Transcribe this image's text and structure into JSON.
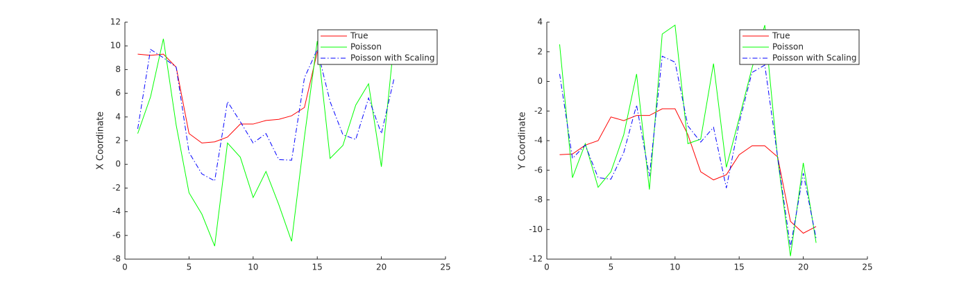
{
  "chart_data": [
    {
      "type": "line",
      "ylabel": "X Coordinate",
      "x": [
        1,
        2,
        3,
        4,
        5,
        6,
        7,
        8,
        9,
        10,
        11,
        12,
        13,
        14,
        15,
        16,
        17,
        18,
        19,
        20,
        21
      ],
      "series": [
        {
          "name": "True",
          "color": "#ff0000",
          "style": "solid",
          "values": [
            9.3,
            9.2,
            9.3,
            8.2,
            2.6,
            1.8,
            1.9,
            2.3,
            3.4,
            3.4,
            3.7,
            3.8,
            4.1,
            4.8,
            9.5,
            9.8,
            10.0,
            10.2,
            10.4,
            10.6,
            10.8
          ]
        },
        {
          "name": "Poisson",
          "color": "#00ff00",
          "style": "solid",
          "values": [
            2.6,
            5.7,
            10.6,
            3.3,
            -2.4,
            -4.2,
            -6.9,
            1.8,
            0.6,
            -2.8,
            -0.6,
            -3.4,
            -6.5,
            2.3,
            10.4,
            0.5,
            1.6,
            5.0,
            6.8,
            -0.2,
            10.5
          ]
        },
        {
          "name": "Poisson with Scaling",
          "color": "#0000ff",
          "style": "dashdot",
          "values": [
            3.0,
            9.7,
            9.0,
            8.2,
            1.0,
            -0.8,
            -1.4,
            5.3,
            3.6,
            1.8,
            2.6,
            0.4,
            0.35,
            7.3,
            9.7,
            5.3,
            2.5,
            2.1,
            5.6,
            2.6,
            7.3
          ]
        }
      ],
      "xlim": [
        0,
        25
      ],
      "xticks": [
        0,
        5,
        10,
        15,
        20,
        25
      ],
      "ylim": [
        -8,
        12
      ],
      "yticks": [
        -8,
        -6,
        -4,
        -2,
        0,
        2,
        4,
        6,
        8,
        10,
        12
      ],
      "legend": "northeast"
    },
    {
      "type": "line",
      "ylabel": "Y Coordinate",
      "x": [
        1,
        2,
        3,
        4,
        5,
        6,
        7,
        8,
        9,
        10,
        11,
        12,
        13,
        14,
        15,
        16,
        17,
        18,
        19,
        20,
        21
      ],
      "series": [
        {
          "name": "True",
          "color": "#ff0000",
          "style": "solid",
          "values": [
            -4.95,
            -4.9,
            -4.3,
            -4.0,
            -2.4,
            -2.65,
            -2.3,
            -2.3,
            -1.85,
            -1.85,
            -3.6,
            -6.1,
            -6.65,
            -6.3,
            -4.95,
            -4.35,
            -4.35,
            -5.1,
            -9.45,
            -10.25,
            -9.8
          ]
        },
        {
          "name": "Poisson",
          "color": "#00ff00",
          "style": "solid",
          "values": [
            2.5,
            -6.5,
            -4.2,
            -7.15,
            -6.1,
            -3.6,
            0.5,
            -7.3,
            3.2,
            3.8,
            -4.2,
            -3.9,
            1.2,
            -5.8,
            -2.5,
            0.9,
            3.8,
            -5.2,
            -11.8,
            -5.5,
            -10.9
          ]
        },
        {
          "name": "Poisson with Scaling",
          "color": "#0000ff",
          "style": "dashdot",
          "values": [
            0.5,
            -5.2,
            -4.3,
            -6.5,
            -6.6,
            -4.8,
            -1.6,
            -6.4,
            1.7,
            1.3,
            -3.0,
            -4.1,
            -3.1,
            -7.2,
            -2.8,
            0.6,
            1.1,
            -5.1,
            -11.2,
            -6.2,
            -10.6
          ]
        }
      ],
      "xlim": [
        0,
        25
      ],
      "xticks": [
        0,
        5,
        10,
        15,
        20,
        25
      ],
      "ylim": [
        -12,
        4
      ],
      "yticks": [
        -12,
        -10,
        -8,
        -6,
        -4,
        -2,
        0,
        2,
        4
      ],
      "legend": "northeast"
    }
  ]
}
